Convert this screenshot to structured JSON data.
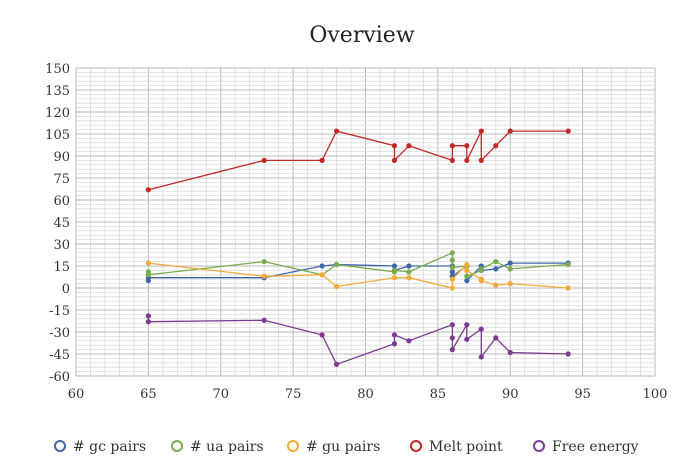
{
  "chart_data": {
    "type": "scatter",
    "title": "Overview",
    "xlabel": "",
    "ylabel": "",
    "xlim": [
      60,
      100
    ],
    "ylim": [
      -60,
      150
    ],
    "xticks": [
      60,
      65,
      70,
      75,
      80,
      85,
      90,
      95,
      100
    ],
    "yticks": [
      -60,
      -45,
      -30,
      -15,
      0,
      15,
      30,
      45,
      60,
      75,
      90,
      105,
      120,
      135,
      150
    ],
    "grid": true,
    "legend_position": "bottom",
    "series": [
      {
        "name": "# gc pairs",
        "color": "#3f66a8",
        "points": [
          [
            65,
            5
          ],
          [
            65,
            7
          ],
          [
            73,
            7
          ],
          [
            77,
            15
          ],
          [
            78,
            16
          ],
          [
            82,
            15
          ],
          [
            82,
            12
          ],
          [
            83,
            15
          ],
          [
            86,
            15
          ],
          [
            86,
            11
          ],
          [
            86,
            8
          ],
          [
            87,
            15
          ],
          [
            87,
            5
          ],
          [
            88,
            15
          ],
          [
            88,
            12
          ],
          [
            89,
            13
          ],
          [
            90,
            17
          ],
          [
            94,
            17
          ]
        ]
      },
      {
        "name": "# ua pairs",
        "color": "#7aab4f",
        "points": [
          [
            65,
            11
          ],
          [
            65,
            9
          ],
          [
            73,
            18
          ],
          [
            77,
            9
          ],
          [
            78,
            16
          ],
          [
            82,
            11
          ],
          [
            82,
            12
          ],
          [
            83,
            11
          ],
          [
            86,
            24
          ],
          [
            86,
            19
          ],
          [
            86,
            14
          ],
          [
            87,
            15
          ],
          [
            87,
            8
          ],
          [
            88,
            12
          ],
          [
            88,
            13
          ],
          [
            89,
            18
          ],
          [
            90,
            13
          ],
          [
            94,
            16
          ]
        ]
      },
      {
        "name": "# gu pairs",
        "color": "#f0aa3a",
        "points": [
          [
            65,
            17
          ],
          [
            73,
            8
          ],
          [
            77,
            9
          ],
          [
            78,
            1
          ],
          [
            82,
            7
          ],
          [
            83,
            7
          ],
          [
            86,
            0
          ],
          [
            86,
            6
          ],
          [
            87,
            16
          ],
          [
            87,
            12
          ],
          [
            88,
            6
          ],
          [
            88,
            5
          ],
          [
            89,
            2
          ],
          [
            90,
            3
          ],
          [
            94,
            0
          ]
        ]
      },
      {
        "name": "Melt point",
        "color": "#c0282a",
        "points": [
          [
            65,
            67
          ],
          [
            73,
            87
          ],
          [
            77,
            87
          ],
          [
            78,
            107
          ],
          [
            82,
            97
          ],
          [
            82,
            87
          ],
          [
            83,
            97
          ],
          [
            86,
            87
          ],
          [
            86,
            97
          ],
          [
            87,
            97
          ],
          [
            87,
            87
          ],
          [
            88,
            107
          ],
          [
            88,
            87
          ],
          [
            89,
            97
          ],
          [
            90,
            107
          ],
          [
            94,
            107
          ]
        ]
      },
      {
        "name": "Free energy",
        "color": "#7a3c8e",
        "points": [
          [
            65,
            -19
          ],
          [
            65,
            -23
          ],
          [
            73,
            -22
          ],
          [
            77,
            -32
          ],
          [
            78,
            -52
          ],
          [
            82,
            -38
          ],
          [
            82,
            -32
          ],
          [
            83,
            -36
          ],
          [
            86,
            -25
          ],
          [
            86,
            -34
          ],
          [
            86,
            -42
          ],
          [
            87,
            -25
          ],
          [
            87,
            -35
          ],
          [
            88,
            -28
          ],
          [
            88,
            -47
          ],
          [
            89,
            -34
          ],
          [
            90,
            -44
          ],
          [
            94,
            -45
          ]
        ]
      }
    ]
  }
}
